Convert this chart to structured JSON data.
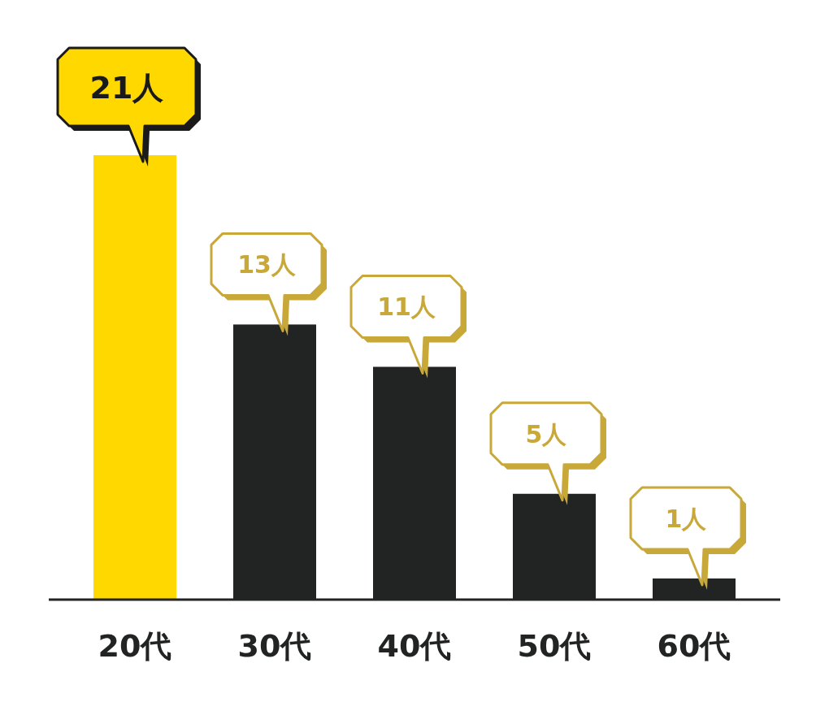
{
  "chart_data": {
    "type": "bar",
    "categories": [
      "20代",
      "30代",
      "40代",
      "50代",
      "60代"
    ],
    "values": [
      21,
      13,
      11,
      5,
      1
    ],
    "colors": [
      "#ffd800",
      "#222423",
      "#222423",
      "#222423",
      "#222423"
    ],
    "value_labels": [
      "21人",
      "13人",
      "11人",
      "5人",
      "1人"
    ]
  }
}
